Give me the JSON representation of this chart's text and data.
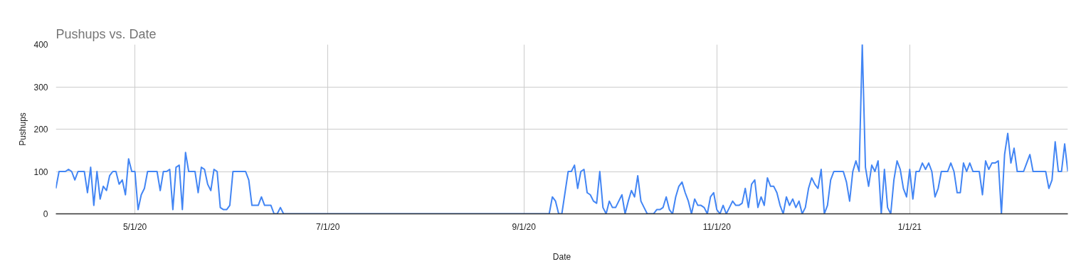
{
  "chart_data": {
    "type": "line",
    "title": "Pushups vs. Date",
    "xlabel": "Date",
    "ylabel": "Pushups",
    "x": [
      "2020-04-06",
      "2020-04-07",
      "2020-04-09",
      "2020-04-10",
      "2020-04-11",
      "2020-04-12",
      "2020-04-13",
      "2020-04-15",
      "2020-04-16",
      "2020-04-17",
      "2020-04-18",
      "2020-04-19",
      "2020-04-20",
      "2020-04-21",
      "2020-04-22",
      "2020-04-23",
      "2020-04-24",
      "2020-04-25",
      "2020-04-26",
      "2020-04-27",
      "2020-04-28",
      "2020-04-29",
      "2020-04-30",
      "2020-05-01",
      "2020-05-02",
      "2020-05-03",
      "2020-05-04",
      "2020-05-05",
      "2020-05-08",
      "2020-05-09",
      "2020-05-10",
      "2020-05-11",
      "2020-05-12",
      "2020-05-13",
      "2020-05-14",
      "2020-05-15",
      "2020-05-16",
      "2020-05-17",
      "2020-05-18",
      "2020-05-20",
      "2020-05-21",
      "2020-05-22",
      "2020-05-23",
      "2020-05-24",
      "2020-05-25",
      "2020-05-26",
      "2020-05-27",
      "2020-05-28",
      "2020-05-29",
      "2020-05-30",
      "2020-05-31",
      "2020-06-01",
      "2020-06-05",
      "2020-06-06",
      "2020-06-07",
      "2020-06-09",
      "2020-06-10",
      "2020-06-11",
      "2020-06-13",
      "2020-06-14",
      "2020-06-15",
      "2020-06-16",
      "2020-06-17",
      "2020-09-09",
      "2020-09-10",
      "2020-09-11",
      "2020-09-12",
      "2020-09-13",
      "2020-09-14",
      "2020-09-15",
      "2020-09-16",
      "2020-09-17",
      "2020-09-18",
      "2020-09-19",
      "2020-09-20",
      "2020-09-21",
      "2020-09-22",
      "2020-09-23",
      "2020-09-24",
      "2020-09-25",
      "2020-09-26",
      "2020-09-27",
      "2020-09-28",
      "2020-09-29",
      "2020-09-30",
      "2020-10-01",
      "2020-10-02",
      "2020-10-03",
      "2020-10-04",
      "2020-10-05",
      "2020-10-06",
      "2020-10-07",
      "2020-10-08",
      "2020-10-09",
      "2020-10-10",
      "2020-10-12",
      "2020-10-13",
      "2020-10-14",
      "2020-10-15",
      "2020-10-16",
      "2020-10-17",
      "2020-10-18",
      "2020-10-19",
      "2020-10-20",
      "2020-10-21",
      "2020-10-22",
      "2020-10-23",
      "2020-10-24",
      "2020-10-25",
      "2020-10-26",
      "2020-10-27",
      "2020-10-28",
      "2020-10-29",
      "2020-10-30",
      "2020-10-31",
      "2020-11-01",
      "2020-11-02",
      "2020-11-03",
      "2020-11-04",
      "2020-11-05",
      "2020-11-06",
      "2020-11-07",
      "2020-11-08",
      "2020-11-09",
      "2020-11-10",
      "2020-11-11",
      "2020-11-12",
      "2020-11-13",
      "2020-11-14",
      "2020-11-15",
      "2020-11-16",
      "2020-11-17",
      "2020-11-18",
      "2020-11-19",
      "2020-11-20",
      "2020-11-21",
      "2020-11-22",
      "2020-11-23",
      "2020-11-24",
      "2020-11-25",
      "2020-11-26",
      "2020-11-27",
      "2020-11-28",
      "2020-11-29",
      "2020-11-30",
      "2020-12-01",
      "2020-12-02",
      "2020-12-03",
      "2020-12-04",
      "2020-12-05",
      "2020-12-06",
      "2020-12-07",
      "2020-12-08",
      "2020-12-11",
      "2020-12-12",
      "2020-12-13",
      "2020-12-14",
      "2020-12-15",
      "2020-12-16",
      "2020-12-17",
      "2020-12-18",
      "2020-12-19",
      "2020-12-20",
      "2020-12-21",
      "2020-12-22",
      "2020-12-23",
      "2020-12-24",
      "2020-12-25",
      "2020-12-26",
      "2020-12-27",
      "2020-12-28",
      "2020-12-29",
      "2020-12-30",
      "2020-12-31",
      "2021-01-01",
      "2021-01-02",
      "2021-01-03",
      "2021-01-04",
      "2021-01-05",
      "2021-01-06",
      "2021-01-07",
      "2021-01-08",
      "2021-01-09",
      "2021-01-10",
      "2021-01-11",
      "2021-01-13",
      "2021-01-14",
      "2021-01-15",
      "2021-01-16",
      "2021-01-17",
      "2021-01-18",
      "2021-01-19",
      "2021-01-20",
      "2021-01-21",
      "2021-01-23",
      "2021-01-24",
      "2021-01-25",
      "2021-01-26",
      "2021-01-27",
      "2021-01-28",
      "2021-01-29",
      "2021-01-30",
      "2021-01-31",
      "2021-02-01",
      "2021-02-02",
      "2021-02-03",
      "2021-02-04",
      "2021-02-06",
      "2021-02-07",
      "2021-02-08",
      "2021-02-09",
      "2021-02-13",
      "2021-02-14",
      "2021-02-15",
      "2021-02-16",
      "2021-02-17",
      "2021-02-18",
      "2021-02-19",
      "2021-02-20"
    ],
    "series": [
      {
        "color": "#4285f4",
        "values": [
          60,
          100,
          100,
          105,
          100,
          80,
          100,
          100,
          50,
          110,
          20,
          100,
          35,
          65,
          55,
          90,
          100,
          100,
          70,
          80,
          45,
          130,
          100,
          100,
          10,
          45,
          60,
          100,
          100,
          55,
          100,
          100,
          105,
          10,
          110,
          115,
          10,
          145,
          100,
          100,
          50,
          110,
          105,
          70,
          55,
          105,
          100,
          15,
          10,
          10,
          20,
          100,
          100,
          80,
          20,
          20,
          40,
          20,
          20,
          0,
          0,
          15,
          0,
          0,
          40,
          30,
          0,
          0,
          50,
          100,
          100,
          115,
          60,
          100,
          105,
          50,
          45,
          30,
          25,
          100,
          15,
          0,
          30,
          15,
          15,
          30,
          45,
          0,
          30,
          55,
          40,
          90,
          30,
          15,
          0,
          0,
          10,
          10,
          15,
          40,
          10,
          0,
          40,
          65,
          75,
          50,
          30,
          0,
          35,
          20,
          20,
          15,
          0,
          40,
          50,
          10,
          0,
          20,
          0,
          15,
          30,
          20,
          20,
          25,
          60,
          15,
          70,
          80,
          15,
          40,
          20,
          85,
          65,
          65,
          50,
          20,
          0,
          40,
          20,
          35,
          15,
          30,
          0,
          15,
          60,
          85,
          70,
          60,
          105,
          0,
          20,
          80,
          100,
          100,
          75,
          30,
          100,
          125,
          100,
          400,
          110,
          65,
          115,
          100,
          125,
          0,
          105,
          15,
          0,
          80,
          125,
          105,
          60,
          40,
          105,
          35,
          100,
          100,
          120,
          105,
          120,
          100,
          40,
          60,
          100,
          100,
          120,
          100,
          50,
          50,
          120,
          100,
          120,
          100,
          100,
          45,
          125,
          105,
          120,
          120,
          125,
          0,
          140,
          190,
          120,
          155,
          100,
          100,
          120,
          140,
          100,
          100,
          60,
          80,
          170,
          100,
          100,
          165,
          100
        ]
      }
    ],
    "xlim": [
      "2020-04-06",
      "2021-02-20"
    ],
    "xticks": [
      {
        "value": "2020-05-01",
        "label": "5/1/20"
      },
      {
        "value": "2020-07-01",
        "label": "7/1/20"
      },
      {
        "value": "2020-09-01",
        "label": "9/1/20"
      },
      {
        "value": "2020-11-01",
        "label": "11/1/20"
      },
      {
        "value": "2021-01-01",
        "label": "1/1/21"
      }
    ],
    "ylim": [
      0,
      400
    ],
    "yticks": [
      0,
      100,
      200,
      300,
      400
    ],
    "grid": true,
    "line_style": "solid"
  }
}
